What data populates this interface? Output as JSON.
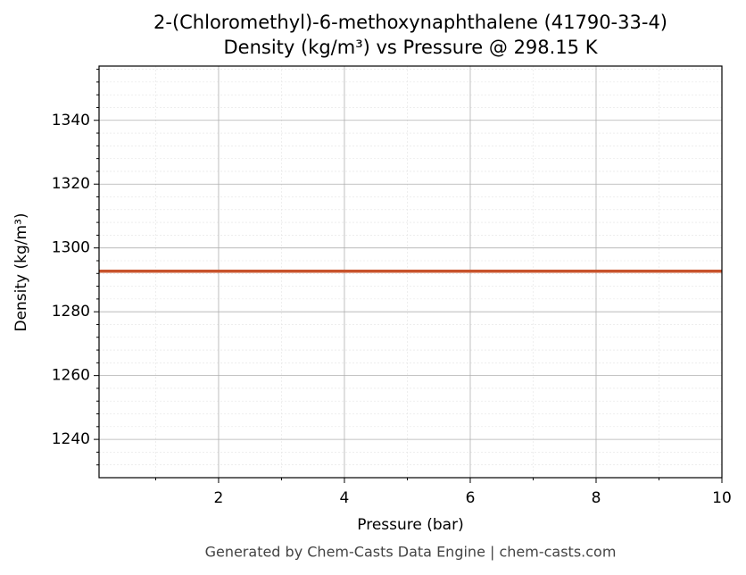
{
  "chart_data": {
    "type": "line",
    "title": "2-(Chloromethyl)-6-methoxynaphthalene (41790-33-4)",
    "subtitle": "Density (kg/m³) vs Pressure @ 298.15 K",
    "x_label": "Pressure (bar)",
    "y_label": "Density (kg/m³)",
    "footer": "Generated by Chem-Casts Data Engine | chem-casts.com",
    "x": [
      0.1,
      10
    ],
    "series": [
      {
        "name": "Density",
        "color": "#c8532b",
        "values": [
          1292.7,
          1292.7
        ]
      }
    ],
    "xlim": [
      0.1,
      10
    ],
    "xticks": [
      2,
      4,
      6,
      8,
      10
    ],
    "xminorticks": [
      1,
      3,
      5,
      7,
      9
    ],
    "ylim": [
      1228,
      1357
    ],
    "yticks": [
      1240,
      1260,
      1280,
      1300,
      1320,
      1340
    ],
    "yminorticks": [
      1232,
      1236,
      1244,
      1248,
      1252,
      1256,
      1264,
      1268,
      1272,
      1276,
      1284,
      1288,
      1292,
      1296,
      1304,
      1308,
      1312,
      1316,
      1324,
      1328,
      1332,
      1336,
      1344,
      1348,
      1352,
      1356
    ],
    "grid": true
  }
}
